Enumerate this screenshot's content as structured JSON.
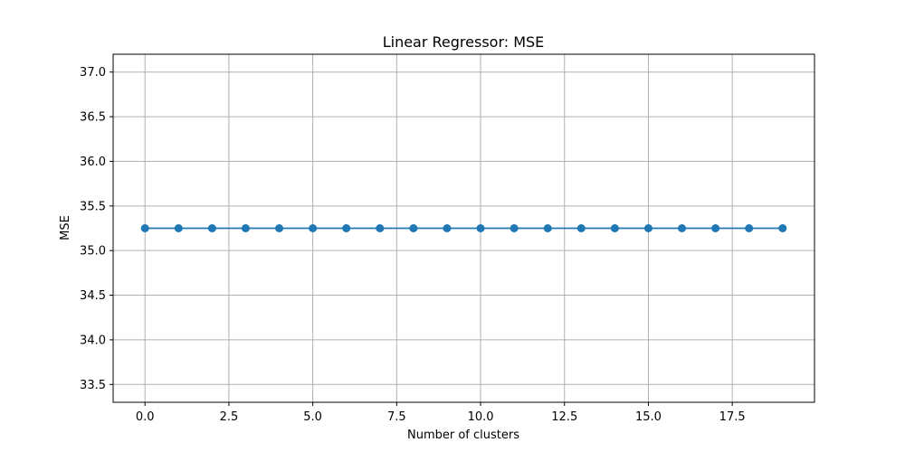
{
  "chart_data": {
    "type": "line",
    "title": "Linear Regressor: MSE",
    "xlabel": "Number of clusters",
    "ylabel": "MSE",
    "x": [
      0,
      1,
      2,
      3,
      4,
      5,
      6,
      7,
      8,
      9,
      10,
      11,
      12,
      13,
      14,
      15,
      16,
      17,
      18,
      19
    ],
    "series": [
      {
        "values": [
          35.25,
          35.25,
          35.25,
          35.25,
          35.25,
          35.25,
          35.25,
          35.25,
          35.25,
          35.25,
          35.25,
          35.25,
          35.25,
          35.25,
          35.25,
          35.25,
          35.25,
          35.25,
          35.25,
          35.25
        ],
        "color": "#1f77b4",
        "marker": "circle"
      }
    ],
    "xlim": [
      -0.95,
      19.95
    ],
    "ylim": [
      33.3,
      37.2
    ],
    "xticks": [
      "0.0",
      "2.5",
      "5.0",
      "7.5",
      "10.0",
      "12.5",
      "15.0",
      "17.5"
    ],
    "yticks": [
      "33.5",
      "34.0",
      "34.5",
      "35.0",
      "35.5",
      "36.0",
      "36.5",
      "37.0"
    ],
    "grid": true,
    "legend": "none"
  }
}
